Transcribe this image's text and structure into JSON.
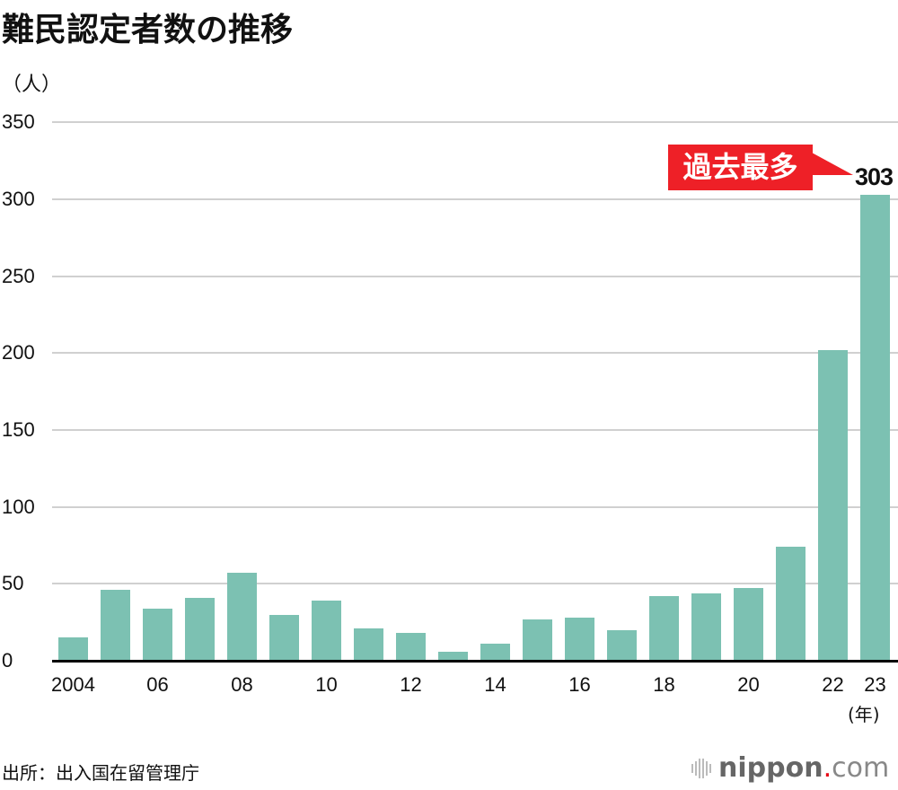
{
  "title": "難民認定者数の推移",
  "unit_label": "（人）",
  "x_unit_label": "(年)",
  "callout": {
    "label": "過去最多",
    "value_label": "303",
    "color": "#ee2027"
  },
  "source": "出所：出入国在留管理庁",
  "logo": {
    "name": "nippon",
    "dot": ".",
    "suffix": "com"
  },
  "colors": {
    "bar": "#7cc1b2",
    "grid": "#d0d0d0",
    "axis": "#000000"
  },
  "y_ticks": [
    "350",
    "300",
    "250",
    "200",
    "150",
    "100",
    "50",
    "0"
  ],
  "x_ticks": [
    {
      "label": "2004",
      "index": 0
    },
    {
      "label": "06",
      "index": 2
    },
    {
      "label": "08",
      "index": 4
    },
    {
      "label": "10",
      "index": 6
    },
    {
      "label": "12",
      "index": 8
    },
    {
      "label": "14",
      "index": 10
    },
    {
      "label": "16",
      "index": 12
    },
    {
      "label": "18",
      "index": 14
    },
    {
      "label": "20",
      "index": 16
    },
    {
      "label": "22",
      "index": 18
    },
    {
      "label": "23",
      "index": 19
    }
  ],
  "chart_data": {
    "type": "bar",
    "title": "難民認定者数の推移",
    "xlabel": "(年)",
    "ylabel": "（人）",
    "ylim": [
      0,
      350
    ],
    "grid": true,
    "categories": [
      "2004",
      "2005",
      "2006",
      "2007",
      "2008",
      "2009",
      "2010",
      "2011",
      "2012",
      "2013",
      "2014",
      "2015",
      "2016",
      "2017",
      "2018",
      "2019",
      "2020",
      "2021",
      "2022",
      "2023"
    ],
    "values": [
      15,
      46,
      34,
      41,
      57,
      30,
      39,
      21,
      18,
      6,
      11,
      27,
      28,
      20,
      42,
      44,
      47,
      74,
      202,
      303
    ],
    "annotations": [
      {
        "category": "2023",
        "text": "過去最多",
        "value_label": "303"
      }
    ],
    "source": "出所：出入国在留管理庁"
  }
}
